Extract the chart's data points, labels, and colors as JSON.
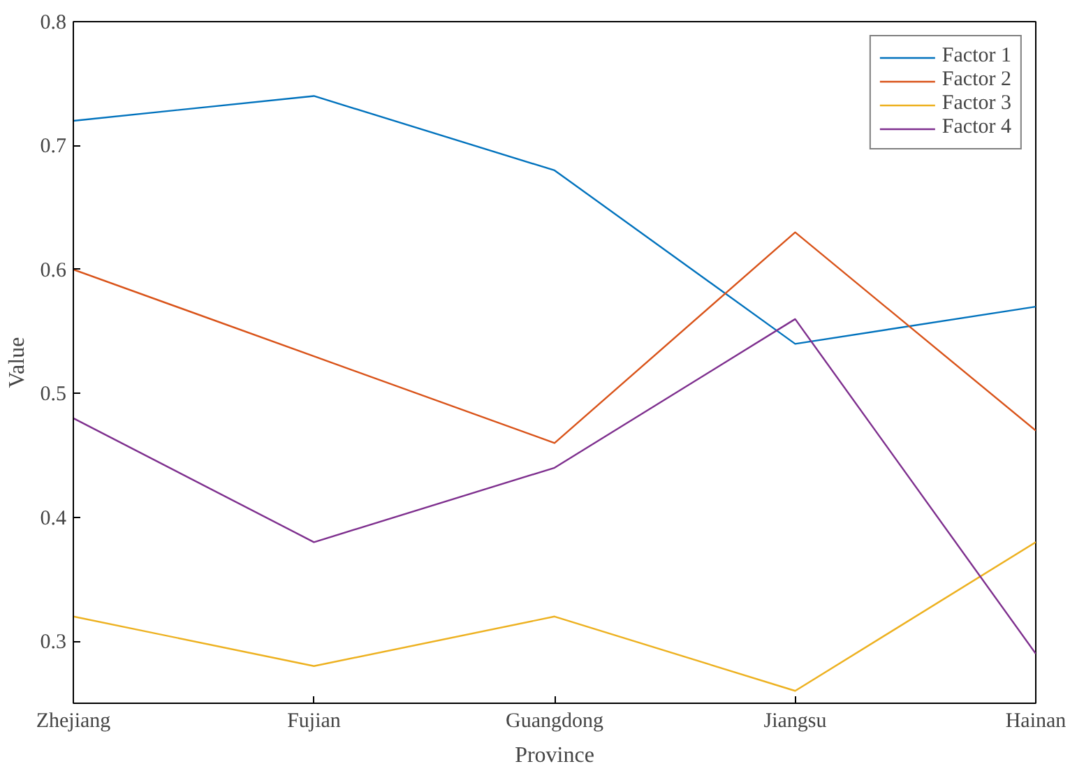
{
  "chart_data": {
    "type": "line",
    "xlabel": "Province",
    "ylabel": "Value",
    "categories": [
      "Zhejiang",
      "Fujian",
      "Guangdong",
      "Jiangsu",
      "Hainan"
    ],
    "series": [
      {
        "name": "Factor 1",
        "color": "#0072bd",
        "values": [
          0.72,
          0.74,
          0.68,
          0.54,
          0.57
        ]
      },
      {
        "name": "Factor 2",
        "color": "#d95319",
        "values": [
          0.6,
          0.53,
          0.46,
          0.63,
          0.47
        ]
      },
      {
        "name": "Factor 3",
        "color": "#edb120",
        "values": [
          0.32,
          0.28,
          0.32,
          0.26,
          0.38
        ]
      },
      {
        "name": "Factor 4",
        "color": "#7e2f8e",
        "values": [
          0.48,
          0.38,
          0.44,
          0.56,
          0.29
        ]
      }
    ],
    "ylim": [
      0.25,
      0.8
    ],
    "yticks": [
      0.3,
      0.4,
      0.5,
      0.6,
      0.7,
      0.8
    ],
    "grid": false,
    "legend": "top right",
    "marker": "none",
    "line_style": "solid"
  }
}
